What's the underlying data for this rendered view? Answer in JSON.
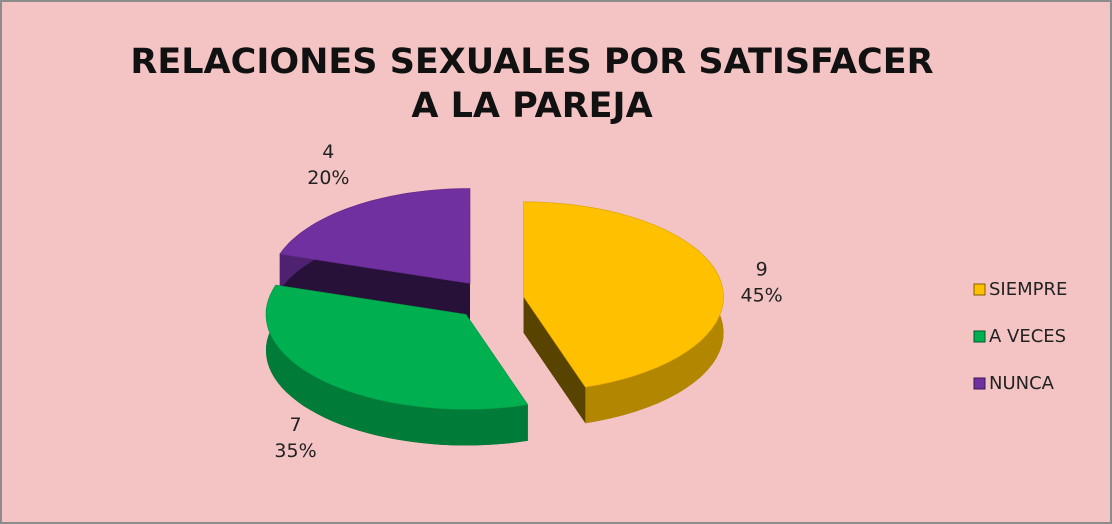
{
  "chart_data": {
    "type": "pie",
    "title": "RELACIONES SEXUALES POR SATISFACER A LA PAREJA",
    "categories": [
      "SIEMPRE",
      "A VECES",
      "NUNCA"
    ],
    "values": [
      9,
      7,
      4
    ],
    "percent_labels": [
      "45%",
      "35%",
      "20%"
    ],
    "colors": [
      "#ffc000",
      "#00b050",
      "#7030a0"
    ],
    "legend": "right"
  }
}
